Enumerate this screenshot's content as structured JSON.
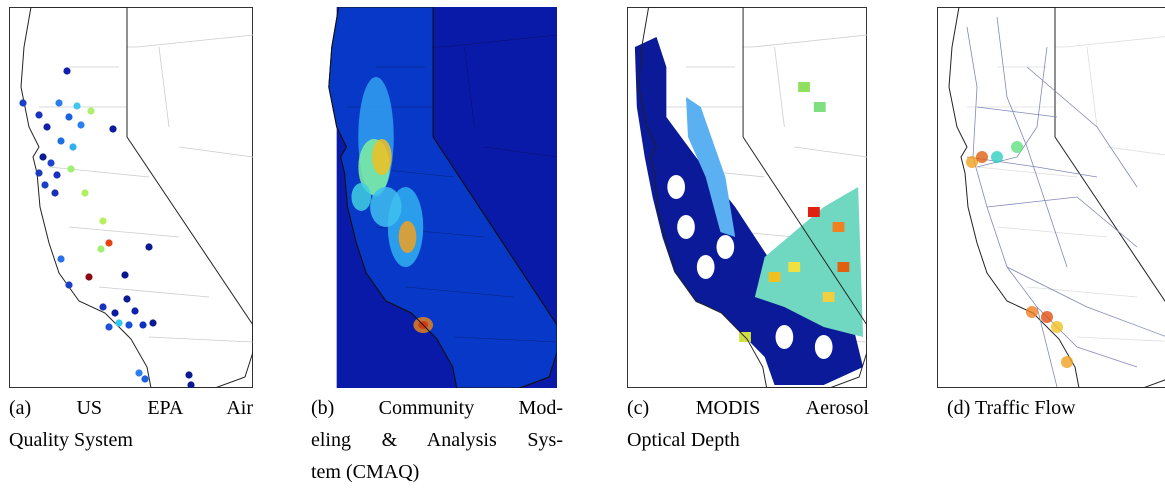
{
  "captions": [
    {
      "lines": [
        "(a) US EPA Air",
        "Quality System"
      ]
    },
    {
      "lines": [
        "(b) Community Mod-",
        "eling & Analysis Sys-",
        "tem (CMAQ)"
      ]
    },
    {
      "lines": [
        "(c) MODIS Aerosol",
        "Optical Depth"
      ]
    },
    {
      "lines": [
        "(d) Traffic Flow"
      ]
    }
  ]
}
